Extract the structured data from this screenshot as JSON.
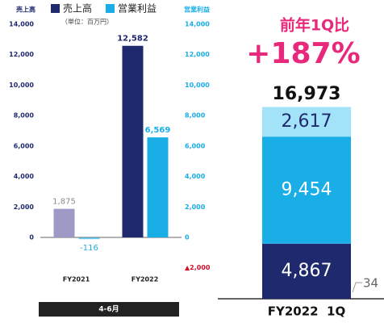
{
  "chart_data": [
    {
      "type": "bar",
      "y_axis_label": "売上高",
      "y2_axis_label": "営業利益",
      "subtitle": "（単位：百万円）",
      "categories": [
        "FY2021",
        "FY2022"
      ],
      "series": [
        {
          "name": "売上高",
          "color": "#1f2a6e",
          "point_colors": [
            "#9d9ac6",
            "#1f2a6e"
          ],
          "label_colors": [
            "#8a8a8a",
            "#1f2a6e"
          ],
          "values": [
            1875,
            12582
          ],
          "value_labels": [
            "1,875",
            "12,582"
          ]
        },
        {
          "name": "営業利益",
          "color": "#19aee6",
          "point_colors": [
            "#19aee6",
            "#19aee6"
          ],
          "label_colors": [
            "#19aee6",
            "#19aee6"
          ],
          "axis": "y2",
          "values": [
            -116,
            6569
          ],
          "value_labels": [
            "-116",
            "6,569"
          ]
        }
      ],
      "ylim": [
        -2000,
        14000
      ],
      "yticks": [
        0,
        {
          "value": 2000,
          "label": "2,000"
        },
        {
          "value": 4000,
          "label": "4,000"
        },
        {
          "value": 6000,
          "label": "6,000"
        },
        {
          "value": 8000,
          "label": "8,000"
        },
        {
          "value": 10000,
          "label": "10,000"
        },
        {
          "value": 12000,
          "label": "12,000"
        },
        {
          "value": 14000,
          "label": "14,000"
        }
      ],
      "y2lim": [
        -2000,
        14000
      ],
      "y2ticks": [
        {
          "value": -2000,
          "label": "▲2,000"
        },
        0,
        {
          "value": 2000,
          "label": "2,000"
        },
        {
          "value": 4000,
          "label": "4,000"
        },
        {
          "value": 6000,
          "label": "6,000"
        },
        {
          "value": 8000,
          "label": "8,000"
        },
        {
          "value": 10000,
          "label": "10,000"
        },
        {
          "value": 12000,
          "label": "12,000"
        },
        {
          "value": 14000,
          "label": "14,000"
        }
      ],
      "period_label": "4-6月"
    },
    {
      "type": "stacked_bar",
      "header": "前年1Q比",
      "change_label": "+187%",
      "categories": [
        "FY2022  1Q"
      ],
      "series": [
        {
          "color": "#1f2a6e",
          "label_color": "#ffffff",
          "values": [
            4867
          ],
          "value_labels": [
            "4,867"
          ]
        },
        {
          "color": "#19aee6",
          "label_color": "#ffffff",
          "values": [
            9454
          ],
          "value_labels": [
            "9,454"
          ]
        },
        {
          "color": "#a3e3fa",
          "label_color": "#1f2a6e",
          "values": [
            2617
          ],
          "value_labels": [
            "2,617"
          ]
        }
      ],
      "total": 16973,
      "total_label": "16,973",
      "annotation": "34"
    }
  ]
}
